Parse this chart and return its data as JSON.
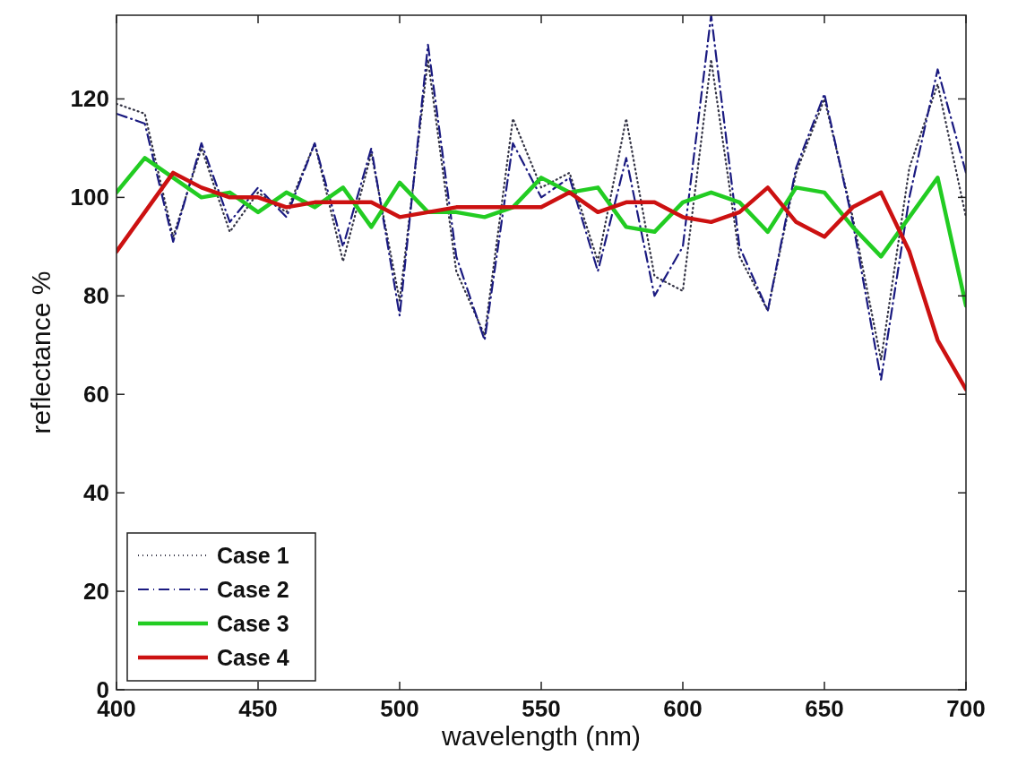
{
  "chart_data": {
    "type": "line",
    "xlabel": "wavelength (nm)",
    "ylabel": "reflectance %",
    "x": [
      400,
      410,
      420,
      430,
      440,
      450,
      460,
      470,
      480,
      490,
      500,
      510,
      520,
      530,
      540,
      550,
      560,
      570,
      580,
      590,
      600,
      610,
      620,
      630,
      640,
      650,
      660,
      670,
      680,
      690,
      700
    ],
    "series": [
      {
        "name": "Case 1",
        "color": "#333344",
        "line_style": "dotted",
        "values": [
          119,
          117,
          92,
          110,
          93,
          101,
          97,
          111,
          87,
          109,
          79,
          128,
          85,
          72,
          116,
          102,
          105,
          87,
          116,
          84,
          81,
          128,
          88,
          77,
          105,
          120,
          96,
          67,
          106,
          123,
          96
        ]
      },
      {
        "name": "Case 2",
        "color": "#1a1a80",
        "line_style": "dashed",
        "values": [
          117,
          115,
          91,
          111,
          95,
          102,
          96,
          111,
          90,
          110,
          76,
          131,
          88,
          71,
          111,
          100,
          104,
          85,
          108,
          80,
          90,
          137,
          90,
          77,
          106,
          121,
          95,
          63,
          100,
          126,
          105
        ]
      },
      {
        "name": "Case 3",
        "color": "#22cc22",
        "line_style": "solid",
        "values": [
          101,
          108,
          104,
          100,
          101,
          97,
          101,
          98,
          102,
          94,
          103,
          97,
          97,
          96,
          98,
          104,
          101,
          102,
          94,
          93,
          99,
          101,
          99,
          93,
          102,
          101,
          94,
          88,
          96,
          104,
          78
        ]
      },
      {
        "name": "Case 4",
        "color": "#cc1111",
        "line_style": "solid",
        "values": [
          89,
          97,
          105,
          102,
          100,
          100,
          98,
          99,
          99,
          99,
          96,
          97,
          98,
          98,
          98,
          98,
          101,
          97,
          99,
          99,
          96,
          95,
          97,
          102,
          95,
          92,
          98,
          101,
          89,
          71,
          61
        ]
      }
    ],
    "xlim": [
      400,
      700
    ],
    "ylim": [
      0,
      137
    ],
    "xticks": [
      400,
      450,
      500,
      550,
      600,
      650,
      700
    ],
    "yticks": [
      0,
      20,
      40,
      60,
      80,
      100,
      120
    ],
    "grid": false,
    "legend": "bottom left"
  }
}
